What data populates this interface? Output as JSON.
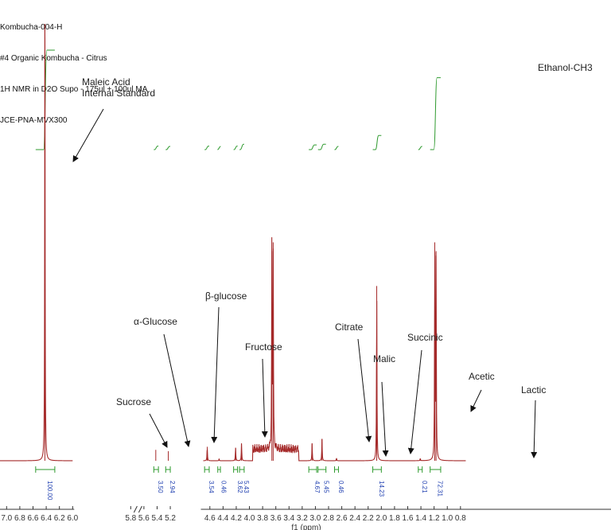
{
  "header": {
    "lines": [
      "Kombucha-004-H",
      "#4 Organic Kombucha - Citrus",
      "1H NMR in D2O Supo - 175ul + 100ul MA",
      "JCE-PNA-MVX300"
    ]
  },
  "chart_data": {
    "type": "line",
    "title": "",
    "xlabel": "f1 (ppm)",
    "ylabel": "",
    "x_reversed": true,
    "axis_break": {
      "from": 6.0,
      "to": 4.7
    },
    "x_ticks": [
      "7.0",
      "6.8",
      "6.6",
      "6.4",
      "6.2",
      "6.0",
      "5.8",
      "5.6",
      "5.4",
      "5.2",
      "4.6",
      "4.4",
      "4.2",
      "4.0",
      "3.8",
      "3.6",
      "3.4",
      "3.2",
      "3.0",
      "2.8",
      "2.6",
      "2.4",
      "2.2",
      "2.0",
      "1.8",
      "1.6",
      "1.4",
      "1.2",
      "1.0",
      "0.8"
    ],
    "peaks": [
      {
        "ppm": 6.42,
        "height": 1.0
      },
      {
        "ppm": 5.42,
        "height": 0.025
      },
      {
        "ppm": 5.23,
        "height": 0.022
      },
      {
        "ppm": 4.64,
        "height": 0.032
      },
      {
        "ppm": 4.46,
        "height": 0.004
      },
      {
        "ppm": 4.21,
        "height": 0.03
      },
      {
        "ppm": 4.12,
        "height": 0.04
      },
      {
        "ppm": 3.66,
        "height": 0.48
      },
      {
        "ppm": 3.64,
        "height": 0.5
      },
      {
        "ppm": 3.05,
        "height": 0.04
      },
      {
        "ppm": 2.9,
        "height": 0.05
      },
      {
        "ppm": 2.68,
        "height": 0.006
      },
      {
        "ppm": 2.07,
        "height": 0.4
      },
      {
        "ppm": 1.41,
        "height": 0.005
      },
      {
        "ppm": 1.19,
        "height": 0.5
      },
      {
        "ppm": 1.17,
        "height": 0.48
      }
    ],
    "integrals": [
      {
        "from": 6.56,
        "to": 6.27,
        "value": "100.00"
      },
      {
        "from": 5.45,
        "to": 5.38,
        "value": "3.50"
      },
      {
        "from": 5.27,
        "to": 5.2,
        "value": "2.94"
      },
      {
        "from": 4.68,
        "to": 4.61,
        "value": "3.54"
      },
      {
        "from": 4.48,
        "to": 4.44,
        "value": "0.46"
      },
      {
        "from": 4.24,
        "to": 4.18,
        "value": "3.62"
      },
      {
        "from": 4.15,
        "to": 4.08,
        "value": "5.43"
      },
      {
        "from": 3.1,
        "to": 2.98,
        "value": "4.67"
      },
      {
        "from": 2.96,
        "to": 2.84,
        "value": "5.45"
      },
      {
        "from": 2.71,
        "to": 2.65,
        "value": "0.46"
      },
      {
        "from": 2.13,
        "to": 2.0,
        "value": "14.23"
      },
      {
        "from": 1.44,
        "to": 1.38,
        "value": "0.21"
      },
      {
        "from": 1.26,
        "to": 1.1,
        "value": "72.31"
      }
    ],
    "annotations": [
      {
        "text": "Maleic Acid",
        "text2": "Internal Standard"
      },
      {
        "text": "Sucrose"
      },
      {
        "text": "α-Glucose"
      },
      {
        "text": "β-glucose"
      },
      {
        "text": "Fructose"
      },
      {
        "text": "Citrate"
      },
      {
        "text": "Malic"
      },
      {
        "text": "Succinic"
      },
      {
        "text": "Acetic"
      },
      {
        "text": "Lactic"
      },
      {
        "text": "Ethanol-CH3"
      }
    ],
    "colors": {
      "spectrum": "#a52a2a",
      "integral": "#2e9a2e",
      "integral_value": "#1f3fb0",
      "axis": "#333333",
      "label": "#222222"
    }
  }
}
